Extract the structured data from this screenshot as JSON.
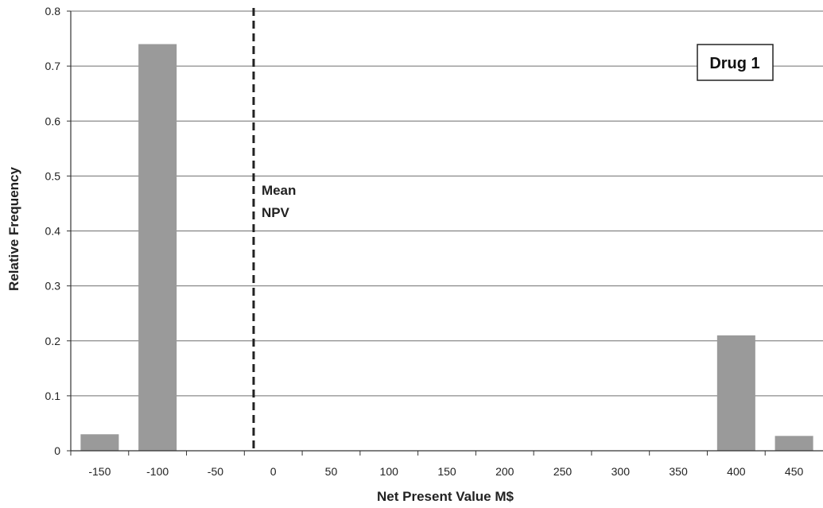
{
  "chart_data": {
    "type": "bar",
    "categories": [
      "-150",
      "-100",
      "-50",
      "0",
      "50",
      "100",
      "150",
      "200",
      "250",
      "300",
      "350",
      "400",
      "450"
    ],
    "series": [
      {
        "name": "Drug 1",
        "values": [
          0.03,
          0.74,
          0,
          0,
          0,
          0,
          0,
          0,
          0,
          0,
          0,
          0.21,
          0.027
        ]
      }
    ],
    "xlabel": "Net Present Value M$",
    "ylabel": "Relative Frequency",
    "ylim": [
      0,
      0.8
    ],
    "yticks": [
      "0",
      "0.1",
      "0.2",
      "0.3",
      "0.4",
      "0.5",
      "0.6",
      "0.7",
      "0.8"
    ],
    "grid": "horizontal",
    "legend_position": "top-right",
    "annotations": [
      {
        "text_lines": [
          "Mean",
          "NPV"
        ],
        "x": -17,
        "style": "dashed vertical line"
      }
    ],
    "colors": {
      "bar": "#9a9a9a",
      "grid": "#6f6f6f",
      "axis": "#333333",
      "mean_line": "#222222"
    }
  }
}
